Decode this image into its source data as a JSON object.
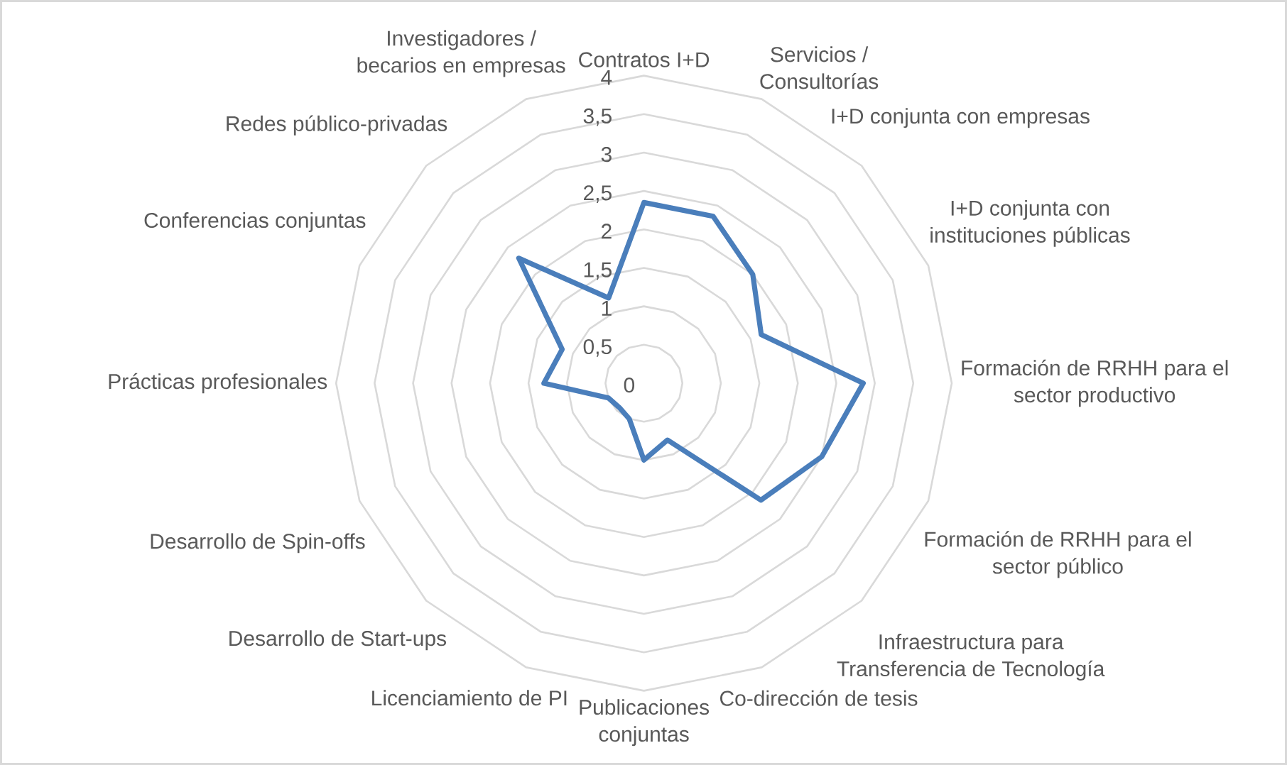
{
  "chart_data": {
    "type": "radar",
    "categories": [
      "Contratos I+D",
      "Servicios / Consultorías",
      "I+D conjunta con empresas",
      "I+D conjunta con instituciones públicas",
      "Formación de RRHH para el sector productivo",
      "Formación de RRHH para el sector público",
      "Infraestructura para Transferencia de Tecnología",
      "Co-dirección de tesis",
      "Publicaciones conjuntas",
      "Licenciamiento de PI",
      "Desarrollo de Start-ups",
      "Desarrollo de Spin-offs",
      "Prácticas profesionales",
      "Conferencias conjuntas",
      "Redes público-privadas",
      "Investigadores / becarios en empresas"
    ],
    "series": [
      {
        "color": "#4a7ebb",
        "values": [
          2.35,
          2.35,
          2.0,
          1.65,
          2.85,
          2.5,
          2.15,
          0.8,
          1.0,
          0.5,
          0.45,
          0.5,
          1.3,
          1.15,
          2.3,
          1.2
        ]
      }
    ],
    "ylim": [
      0,
      4
    ],
    "yticks": [
      0,
      {
        "value": 0.5,
        "label": "0,5"
      },
      1,
      {
        "value": 1.5,
        "label": "1,5"
      },
      2,
      {
        "value": 2.5,
        "label": "2,5"
      },
      3,
      {
        "value": 3.5,
        "label": "3,5"
      },
      4
    ],
    "grid": true
  }
}
